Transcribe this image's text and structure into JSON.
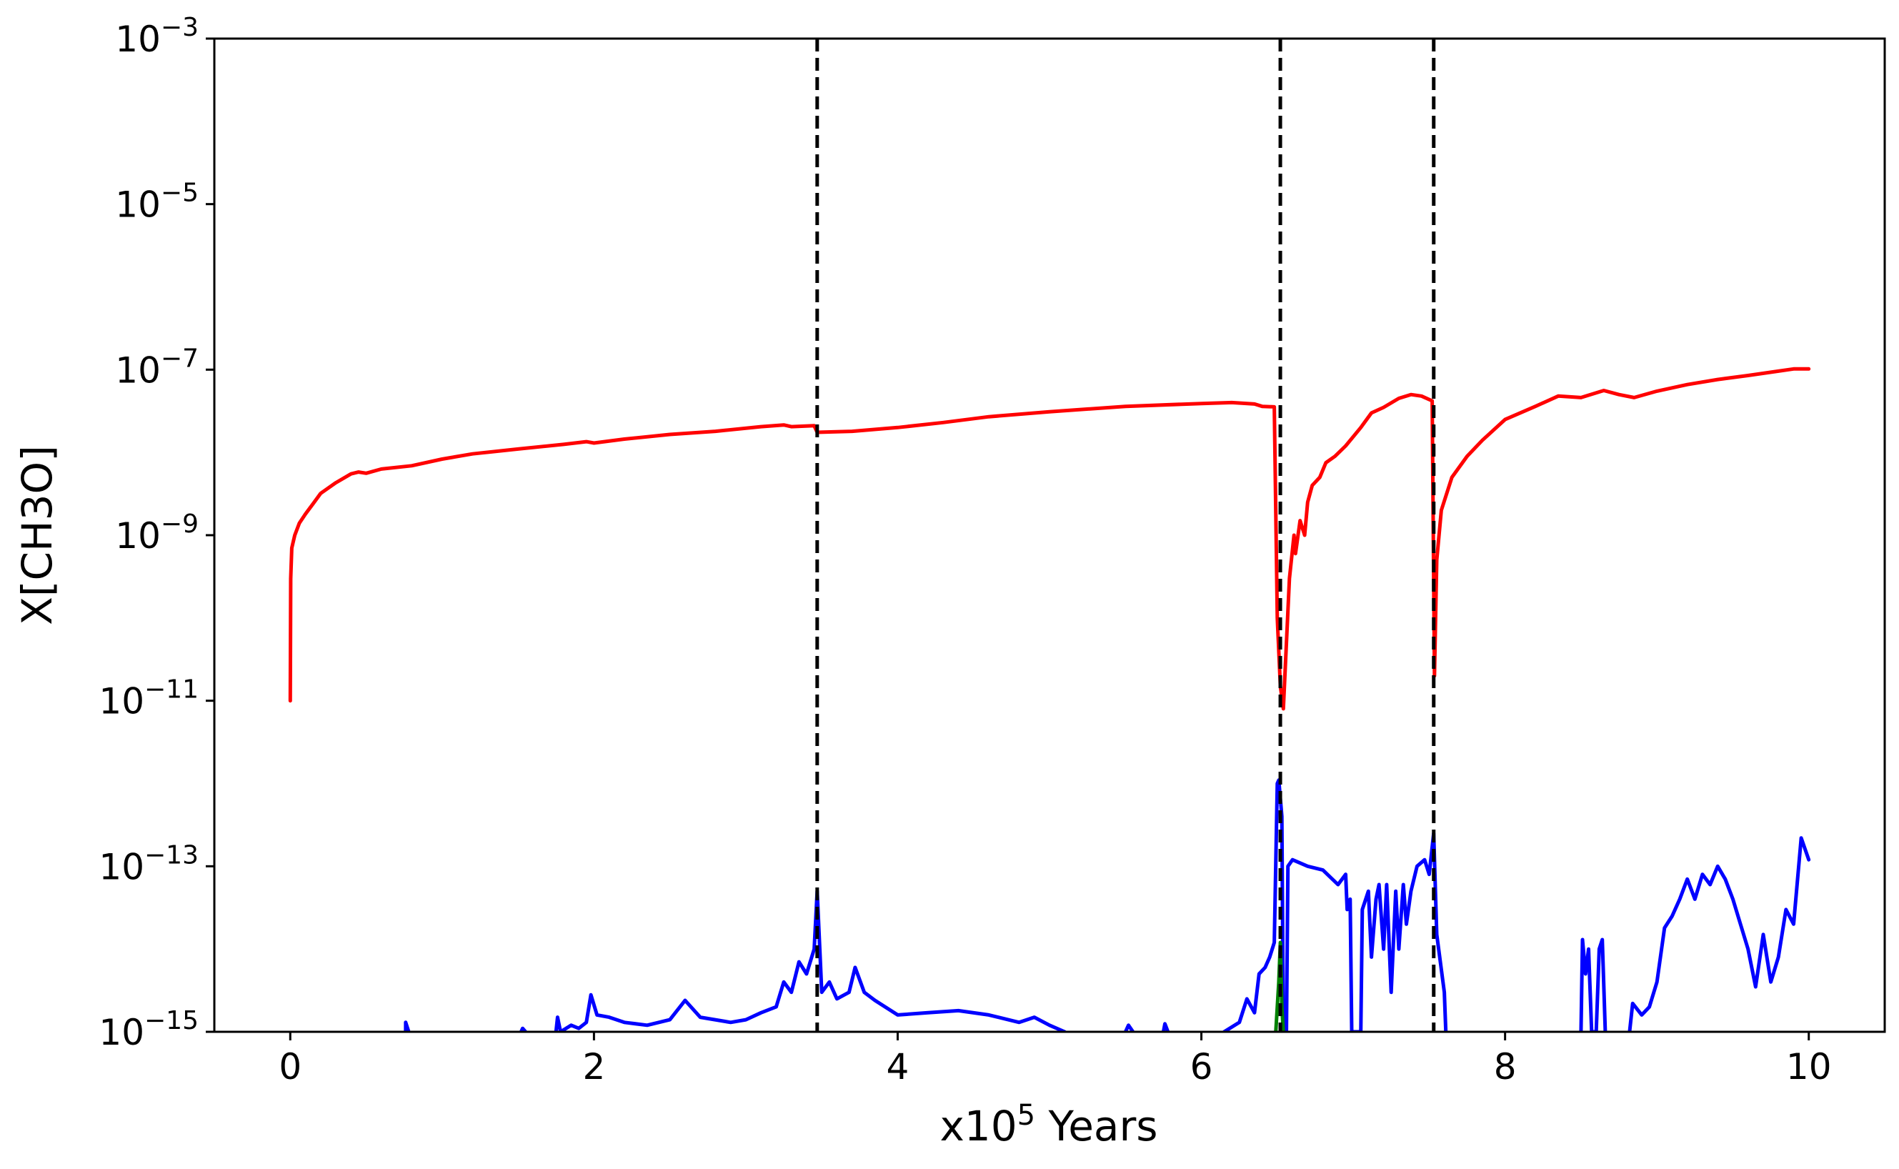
{
  "chart_data": {
    "type": "line",
    "title": "",
    "xlabel": "x10",
    "xlabel_sup": "5",
    "xlabel_rest": " Years",
    "ylabel": "X[CH3O]",
    "yscale": "log",
    "xlim": [
      -0.5,
      10.5
    ],
    "ylim": [
      1e-15,
      0.001
    ],
    "grid": false,
    "legend": "none",
    "x_ticks": [
      0,
      2,
      4,
      6,
      8,
      10
    ],
    "x_tick_labels": [
      "0",
      "2",
      "4",
      "6",
      "8",
      "10"
    ],
    "y_ticks": [
      1e-15,
      1e-13,
      1e-11,
      1e-09,
      1e-07,
      1e-05,
      0.001
    ],
    "y_tick_labels": [
      {
        "base": "10",
        "exp": "−15"
      },
      {
        "base": "10",
        "exp": "−13"
      },
      {
        "base": "10",
        "exp": "−11"
      },
      {
        "base": "10",
        "exp": "−9"
      },
      {
        "base": "10",
        "exp": "−7"
      },
      {
        "base": "10",
        "exp": "−5"
      },
      {
        "base": "10",
        "exp": "−3"
      }
    ],
    "vlines": [
      3.47,
      6.52,
      7.53
    ],
    "vline_color": "#000000",
    "series": [
      {
        "color": "#ff0000",
        "points": [
          [
            0.0,
            1e-11
          ],
          [
            0.003,
            3e-10
          ],
          [
            0.01,
            7e-10
          ],
          [
            0.03,
            1e-09
          ],
          [
            0.06,
            1.4e-09
          ],
          [
            0.1,
            1.8e-09
          ],
          [
            0.15,
            2.4e-09
          ],
          [
            0.2,
            3.2e-09
          ],
          [
            0.3,
            4.3e-09
          ],
          [
            0.4,
            5.5e-09
          ],
          [
            0.45,
            5.8e-09
          ],
          [
            0.5,
            5.6e-09
          ],
          [
            0.6,
            6.3e-09
          ],
          [
            0.8,
            6.9e-09
          ],
          [
            1.0,
            8.3e-09
          ],
          [
            1.2,
            9.6e-09
          ],
          [
            1.5,
            1.1e-08
          ],
          [
            1.8,
            1.25e-08
          ],
          [
            1.95,
            1.35e-08
          ],
          [
            2.0,
            1.3e-08
          ],
          [
            2.2,
            1.45e-08
          ],
          [
            2.5,
            1.65e-08
          ],
          [
            2.8,
            1.8e-08
          ],
          [
            3.1,
            2.05e-08
          ],
          [
            3.25,
            2.15e-08
          ],
          [
            3.3,
            2.05e-08
          ],
          [
            3.45,
            2.1e-08
          ],
          [
            3.47,
            1.75e-08
          ],
          [
            3.7,
            1.8e-08
          ],
          [
            4.0,
            2e-08
          ],
          [
            4.3,
            2.3e-08
          ],
          [
            4.6,
            2.7e-08
          ],
          [
            5.0,
            3.1e-08
          ],
          [
            5.5,
            3.6e-08
          ],
          [
            6.0,
            3.9e-08
          ],
          [
            6.2,
            4e-08
          ],
          [
            6.35,
            3.85e-08
          ],
          [
            6.4,
            3.6e-08
          ],
          [
            6.48,
            3.55e-08
          ],
          [
            6.5,
            1e-10
          ],
          [
            6.52,
            1.5e-11
          ],
          [
            6.54,
            8e-12
          ],
          [
            6.56,
            5e-11
          ],
          [
            6.58,
            3e-10
          ],
          [
            6.61,
            1e-09
          ],
          [
            6.62,
            6e-10
          ],
          [
            6.65,
            1.5e-09
          ],
          [
            6.68,
            1e-09
          ],
          [
            6.7,
            2.5e-09
          ],
          [
            6.73,
            4e-09
          ],
          [
            6.78,
            5e-09
          ],
          [
            6.82,
            7.5e-09
          ],
          [
            6.88,
            9e-09
          ],
          [
            6.95,
            1.2e-08
          ],
          [
            7.05,
            2e-08
          ],
          [
            7.12,
            3e-08
          ],
          [
            7.2,
            3.5e-08
          ],
          [
            7.3,
            4.5e-08
          ],
          [
            7.38,
            5e-08
          ],
          [
            7.45,
            4.8e-08
          ],
          [
            7.52,
            4.2e-08
          ],
          [
            7.535,
            2e-11
          ],
          [
            7.55,
            5e-10
          ],
          [
            7.58,
            2e-09
          ],
          [
            7.65,
            5e-09
          ],
          [
            7.75,
            9e-09
          ],
          [
            7.85,
            1.4e-08
          ],
          [
            8.0,
            2.5e-08
          ],
          [
            8.2,
            3.6e-08
          ],
          [
            8.35,
            4.8e-08
          ],
          [
            8.5,
            4.6e-08
          ],
          [
            8.65,
            5.6e-08
          ],
          [
            8.75,
            5e-08
          ],
          [
            8.85,
            4.6e-08
          ],
          [
            9.0,
            5.5e-08
          ],
          [
            9.2,
            6.6e-08
          ],
          [
            9.4,
            7.6e-08
          ],
          [
            9.6,
            8.5e-08
          ],
          [
            9.8,
            9.6e-08
          ],
          [
            9.9,
            1.02e-07
          ],
          [
            10.0,
            1.02e-07
          ]
        ]
      },
      {
        "color": "#0000ff",
        "points": [
          [
            0.76,
            1e-15
          ],
          [
            0.76,
            1.3e-15
          ],
          [
            0.78,
            1e-15
          ],
          null,
          [
            1.52,
            1e-15
          ],
          [
            1.53,
            1.1e-15
          ],
          [
            1.55,
            1e-15
          ],
          null,
          [
            1.75,
            1e-15
          ],
          [
            1.76,
            1.5e-15
          ],
          [
            1.78,
            1e-15
          ],
          [
            1.85,
            1.2e-15
          ],
          [
            1.9,
            1.1e-15
          ],
          [
            1.95,
            1.3e-15
          ],
          [
            1.98,
            2.8e-15
          ],
          [
            2.02,
            1.6e-15
          ],
          [
            2.1,
            1.5e-15
          ],
          [
            2.2,
            1.3e-15
          ],
          [
            2.35,
            1.2e-15
          ],
          [
            2.5,
            1.4e-15
          ],
          [
            2.6,
            2.4e-15
          ],
          [
            2.7,
            1.5e-15
          ],
          [
            2.9,
            1.3e-15
          ],
          [
            3.0,
            1.4e-15
          ],
          [
            3.1,
            1.7e-15
          ],
          [
            3.2,
            2e-15
          ],
          [
            3.25,
            4e-15
          ],
          [
            3.3,
            3e-15
          ],
          [
            3.35,
            7e-15
          ],
          [
            3.4,
            5e-15
          ],
          [
            3.45,
            1e-14
          ],
          [
            3.47,
            5e-14
          ],
          [
            3.5,
            3e-15
          ],
          [
            3.55,
            4e-15
          ],
          [
            3.6,
            2.5e-15
          ],
          [
            3.68,
            3e-15
          ],
          [
            3.72,
            6e-15
          ],
          [
            3.78,
            3e-15
          ],
          [
            3.85,
            2.4e-15
          ],
          [
            4.0,
            1.6e-15
          ],
          [
            4.2,
            1.7e-15
          ],
          [
            4.4,
            1.8e-15
          ],
          [
            4.6,
            1.6e-15
          ],
          [
            4.8,
            1.3e-15
          ],
          [
            4.9,
            1.5e-15
          ],
          [
            5.0,
            1.2e-15
          ],
          [
            5.1,
            1e-15
          ],
          null,
          [
            5.5,
            1e-15
          ],
          [
            5.52,
            1.2e-15
          ],
          [
            5.55,
            1e-15
          ],
          null,
          [
            5.75,
            1e-15
          ],
          [
            5.76,
            1.25e-15
          ],
          [
            5.78,
            1e-15
          ],
          null,
          [
            6.15,
            1e-15
          ],
          [
            6.25,
            1.3e-15
          ],
          [
            6.3,
            2.5e-15
          ],
          [
            6.35,
            1.7e-15
          ],
          [
            6.38,
            5e-15
          ],
          [
            6.42,
            6e-15
          ],
          [
            6.45,
            8e-15
          ],
          [
            6.48,
            1.2e-14
          ],
          [
            6.5,
            1e-12
          ],
          [
            6.51,
            1.1e-12
          ],
          [
            6.53,
            4e-13
          ],
          [
            6.54,
            1e-15
          ],
          [
            6.56,
            1e-15
          ],
          [
            6.57,
            1e-13
          ],
          [
            6.6,
            1.2e-13
          ],
          [
            6.7,
            1e-13
          ],
          [
            6.8,
            9e-14
          ],
          [
            6.9,
            6e-14
          ],
          [
            6.95,
            8e-14
          ],
          [
            6.96,
            3e-14
          ],
          [
            6.98,
            4e-14
          ],
          [
            6.99,
            1e-15
          ],
          [
            7.05,
            1e-15
          ],
          [
            7.06,
            3e-14
          ],
          [
            7.1,
            5e-14
          ],
          [
            7.12,
            8e-15
          ],
          [
            7.15,
            4e-14
          ],
          [
            7.17,
            6e-14
          ],
          [
            7.2,
            1e-14
          ],
          [
            7.22,
            6e-14
          ],
          [
            7.25,
            3e-15
          ],
          [
            7.28,
            5e-14
          ],
          [
            7.3,
            1e-14
          ],
          [
            7.33,
            6e-14
          ],
          [
            7.35,
            2e-14
          ],
          [
            7.38,
            5e-14
          ],
          [
            7.42,
            1e-13
          ],
          [
            7.47,
            1.2e-13
          ],
          [
            7.5,
            8e-14
          ],
          [
            7.53,
            2.5e-13
          ],
          [
            7.55,
            1.5e-14
          ],
          [
            7.6,
            3e-15
          ],
          [
            7.61,
            1e-15
          ],
          null,
          [
            8.5,
            1e-15
          ],
          [
            8.51,
            1.3e-14
          ],
          [
            8.53,
            5e-15
          ],
          [
            8.55,
            1e-14
          ],
          [
            8.57,
            1e-15
          ],
          [
            8.6,
            1e-15
          ],
          [
            8.62,
            1e-14
          ],
          [
            8.64,
            1.3e-14
          ],
          [
            8.66,
            1e-15
          ],
          null,
          [
            8.82,
            1e-15
          ],
          [
            8.84,
            2.2e-15
          ],
          [
            8.9,
            1.6e-15
          ],
          [
            8.95,
            2e-15
          ],
          [
            9.0,
            4e-15
          ],
          [
            9.05,
            1.8e-14
          ],
          [
            9.1,
            2.5e-14
          ],
          [
            9.15,
            4e-14
          ],
          [
            9.2,
            7e-14
          ],
          [
            9.25,
            4e-14
          ],
          [
            9.3,
            8e-14
          ],
          [
            9.35,
            6e-14
          ],
          [
            9.4,
            1e-13
          ],
          [
            9.45,
            7e-14
          ],
          [
            9.5,
            4e-14
          ],
          [
            9.55,
            2e-14
          ],
          [
            9.6,
            1e-14
          ],
          [
            9.65,
            3.5e-15
          ],
          [
            9.7,
            1.5e-14
          ],
          [
            9.75,
            4e-15
          ],
          [
            9.8,
            8e-15
          ],
          [
            9.85,
            3e-14
          ],
          [
            9.9,
            2e-14
          ],
          [
            9.95,
            2.2e-13
          ],
          [
            10.0,
            1.2e-13
          ]
        ]
      },
      {
        "color": "#008000",
        "points": [
          [
            6.49,
            1e-15
          ],
          [
            6.5,
            2e-15
          ],
          [
            6.51,
            4e-15
          ],
          [
            6.52,
            1.2e-14
          ],
          [
            6.53,
            2e-15
          ],
          [
            6.54,
            1e-15
          ]
        ]
      }
    ]
  }
}
